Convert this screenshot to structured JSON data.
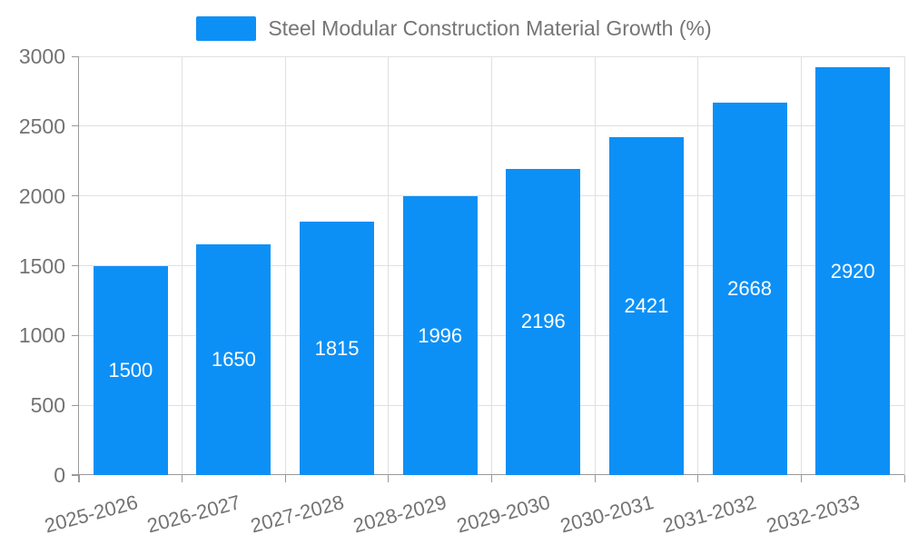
{
  "chart_data": {
    "type": "bar",
    "title": "Steel Modular Construction Material Growth (%)",
    "legend_entries": [
      "Steel Modular Construction Material Growth (%)"
    ],
    "legend_position": "top-center",
    "categories": [
      "2025-2026",
      "2026-2027",
      "2027-2028",
      "2028-2029",
      "2029-2030",
      "2030-2031",
      "2031-2032",
      "2032-2033"
    ],
    "series": [
      {
        "name": "Steel Modular Construction Material Growth (%)",
        "values": [
          1500,
          1650,
          1815,
          1996,
          2196,
          2421,
          2668,
          2920
        ]
      }
    ],
    "value_labels": [
      "1500",
      "1650",
      "1815",
      "1996",
      "2196",
      "2421",
      "2668",
      "2920"
    ],
    "xlabel": "",
    "ylabel": "",
    "ylim": [
      0,
      3000
    ],
    "yticks": [
      0,
      500,
      1000,
      1500,
      2000,
      2500,
      3000
    ],
    "grid": true,
    "gridlines": "horizontal and vertical",
    "x_tick_label_rotation_deg": 15,
    "value_label_placement": "centered inside bars"
  },
  "colors": {
    "bar": "#0d90f6",
    "bar_label_text": "#ffffff",
    "axis_line": "#999999",
    "gridline": "#e0e0e0",
    "tick_text": "#737373",
    "legend_text": "#757575",
    "background": "#ffffff"
  }
}
